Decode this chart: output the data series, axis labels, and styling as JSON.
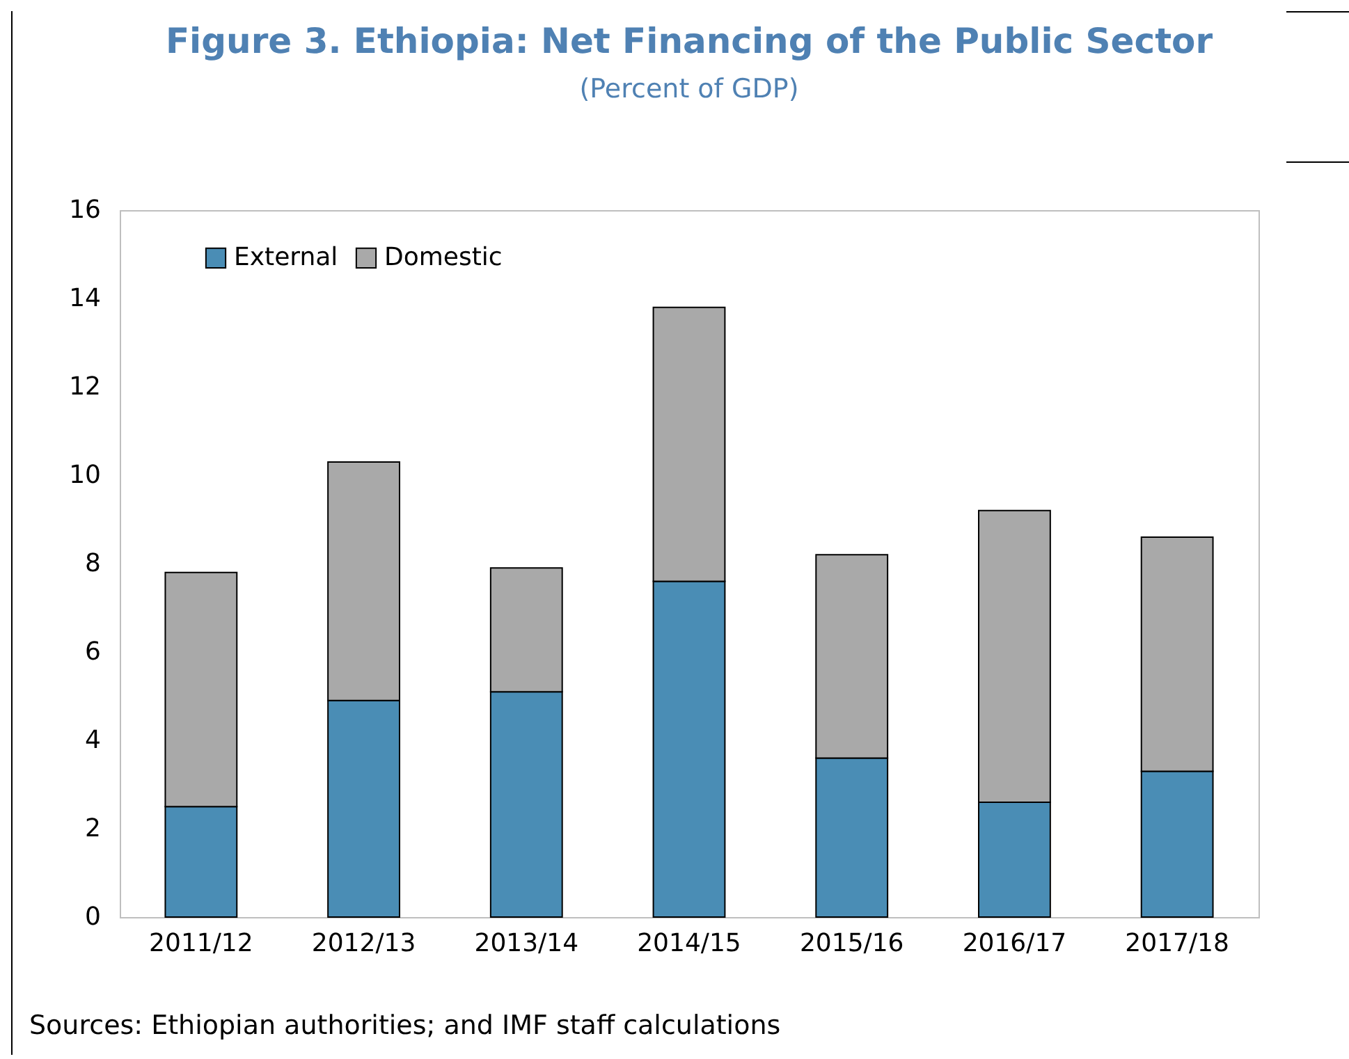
{
  "chart_data": {
    "type": "bar",
    "title": "Figure 3. Ethiopia: Net Financing of the Public Sector",
    "subtitle": "(Percent of GDP)",
    "categories": [
      "2011/12",
      "2012/13",
      "2013/14",
      "2014/15",
      "2015/16",
      "2016/17",
      "2017/18"
    ],
    "stacked": true,
    "series": [
      {
        "name": "External",
        "color": "#4a8db5",
        "values": [
          2.5,
          4.9,
          5.1,
          7.6,
          3.6,
          2.6,
          3.3
        ]
      },
      {
        "name": "Domestic",
        "color": "#a9a9a9",
        "values": [
          5.3,
          5.4,
          2.8,
          6.2,
          4.6,
          6.6,
          5.3
        ]
      }
    ],
    "ylim": [
      0,
      16
    ],
    "yticks": [
      0,
      2,
      4,
      6,
      8,
      10,
      12,
      14,
      16
    ],
    "grid": false,
    "legend": "top left",
    "annotations": [
      "Sources: Ethiopian authorities; and IMF staff calculations"
    ]
  }
}
